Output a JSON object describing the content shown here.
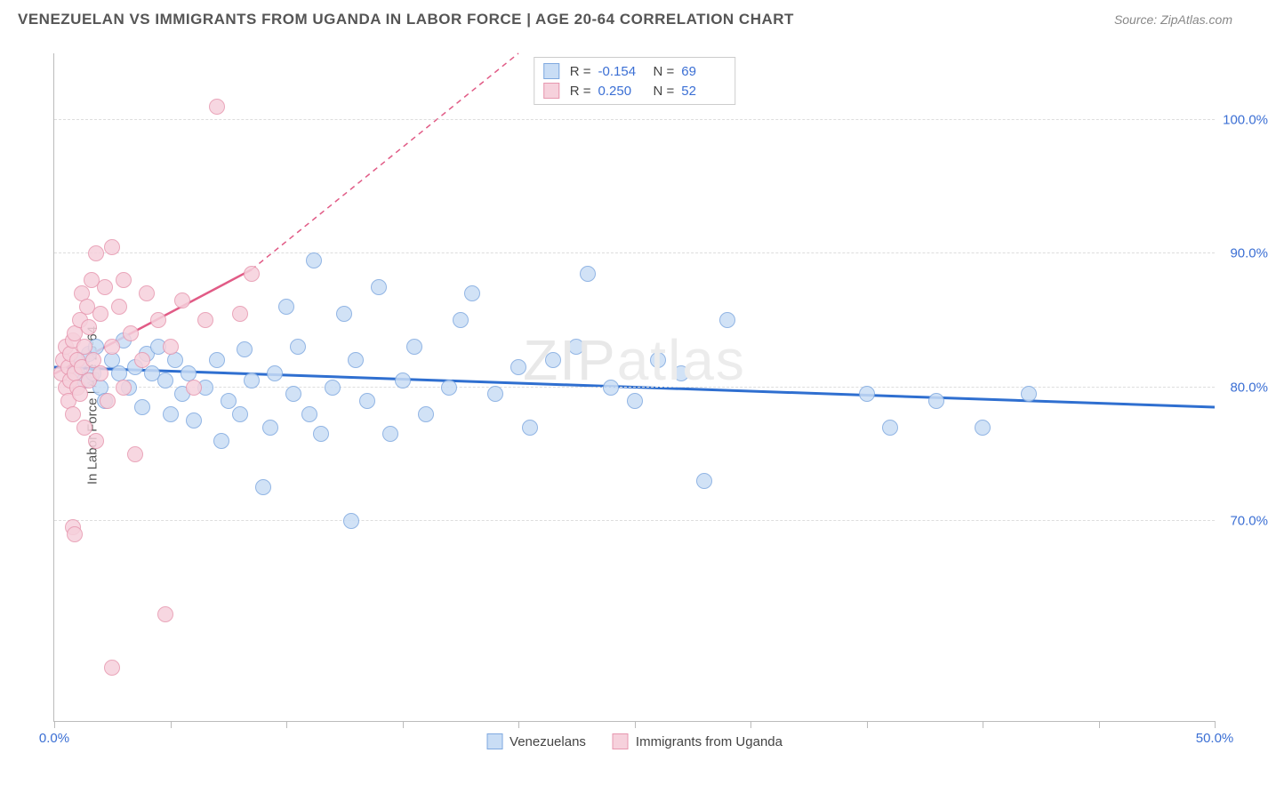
{
  "title": "VENEZUELAN VS IMMIGRANTS FROM UGANDA IN LABOR FORCE | AGE 20-64 CORRELATION CHART",
  "source": "Source: ZipAtlas.com",
  "ylabel": "In Labor Force | Age 20-64",
  "watermark": "ZIPatlas",
  "chart": {
    "type": "scatter",
    "xlim": [
      0,
      50
    ],
    "ylim": [
      55,
      105
    ],
    "xticks": [
      0,
      5,
      10,
      15,
      20,
      25,
      30,
      35,
      40,
      45,
      50
    ],
    "xlabels_shown": {
      "0": "0.0%",
      "50": "50.0%"
    },
    "ygrid": [
      70,
      80,
      90,
      100
    ],
    "ylabels": {
      "70": "70.0%",
      "80": "80.0%",
      "90": "90.0%",
      "100": "100.0%"
    },
    "background_color": "#ffffff",
    "grid_color": "#dddddd",
    "axis_color": "#bbbbbb",
    "marker_radius": 9,
    "series": [
      {
        "name": "Venezuelans",
        "fill": "#c9ddf5",
        "stroke": "#7fa9e0",
        "trend_color": "#2f6fd0",
        "trend_width": 3,
        "trend": {
          "x1": 0,
          "y1": 81.5,
          "x2": 50,
          "y2": 78.5
        },
        "R": "-0.154",
        "N": "69",
        "points": [
          [
            1.0,
            81.0
          ],
          [
            1.2,
            82.0
          ],
          [
            1.3,
            80.5
          ],
          [
            1.5,
            82.5
          ],
          [
            1.7,
            81.0
          ],
          [
            1.8,
            83.0
          ],
          [
            2.0,
            80.0
          ],
          [
            2.2,
            79.0
          ],
          [
            2.5,
            82.0
          ],
          [
            2.8,
            81.0
          ],
          [
            3.0,
            83.5
          ],
          [
            3.2,
            80.0
          ],
          [
            3.5,
            81.5
          ],
          [
            3.8,
            78.5
          ],
          [
            4.0,
            82.5
          ],
          [
            4.2,
            81.0
          ],
          [
            4.5,
            83.0
          ],
          [
            4.8,
            80.5
          ],
          [
            5.0,
            78.0
          ],
          [
            5.2,
            82.0
          ],
          [
            5.5,
            79.5
          ],
          [
            5.8,
            81.0
          ],
          [
            6.0,
            77.5
          ],
          [
            6.5,
            80.0
          ],
          [
            7.0,
            82.0
          ],
          [
            7.2,
            76.0
          ],
          [
            7.5,
            79.0
          ],
          [
            8.0,
            78.0
          ],
          [
            8.2,
            82.8
          ],
          [
            8.5,
            80.5
          ],
          [
            9.0,
            72.5
          ],
          [
            9.3,
            77.0
          ],
          [
            9.5,
            81.0
          ],
          [
            10.0,
            86.0
          ],
          [
            10.3,
            79.5
          ],
          [
            10.5,
            83.0
          ],
          [
            11.0,
            78.0
          ],
          [
            11.2,
            89.5
          ],
          [
            11.5,
            76.5
          ],
          [
            12.0,
            80.0
          ],
          [
            12.5,
            85.5
          ],
          [
            12.8,
            70.0
          ],
          [
            13.0,
            82.0
          ],
          [
            13.5,
            79.0
          ],
          [
            14.0,
            87.5
          ],
          [
            14.5,
            76.5
          ],
          [
            15.0,
            80.5
          ],
          [
            15.5,
            83.0
          ],
          [
            16.0,
            78.0
          ],
          [
            17.0,
            80.0
          ],
          [
            17.5,
            85.0
          ],
          [
            18.0,
            87.0
          ],
          [
            19.0,
            79.5
          ],
          [
            20.0,
            81.5
          ],
          [
            20.5,
            77.0
          ],
          [
            21.5,
            82.0
          ],
          [
            22.5,
            83.0
          ],
          [
            23.0,
            88.5
          ],
          [
            24.0,
            80.0
          ],
          [
            25.0,
            79.0
          ],
          [
            26.0,
            82.0
          ],
          [
            27.0,
            81.0
          ],
          [
            28.0,
            73.0
          ],
          [
            29.0,
            85.0
          ],
          [
            35.0,
            79.5
          ],
          [
            36.0,
            77.0
          ],
          [
            38.0,
            79.0
          ],
          [
            40.0,
            77.0
          ],
          [
            42.0,
            79.5
          ]
        ]
      },
      {
        "name": "Immigrants from Uganda",
        "fill": "#f6d1dc",
        "stroke": "#e797af",
        "trend_color": "#e15b86",
        "trend_width": 2.5,
        "trend": {
          "x1": 0,
          "y1": 81.0,
          "x2": 8.5,
          "y2": 88.8
        },
        "trend_dash": {
          "x1": 8.5,
          "y1": 88.8,
          "x2": 20,
          "y2": 105
        },
        "R": "0.250",
        "N": "52",
        "points": [
          [
            0.3,
            81.0
          ],
          [
            0.4,
            82.0
          ],
          [
            0.5,
            80.0
          ],
          [
            0.5,
            83.0
          ],
          [
            0.6,
            81.5
          ],
          [
            0.6,
            79.0
          ],
          [
            0.7,
            82.5
          ],
          [
            0.7,
            80.5
          ],
          [
            0.8,
            83.5
          ],
          [
            0.8,
            78.0
          ],
          [
            0.9,
            81.0
          ],
          [
            0.9,
            84.0
          ],
          [
            1.0,
            80.0
          ],
          [
            1.0,
            82.0
          ],
          [
            1.1,
            85.0
          ],
          [
            1.1,
            79.5
          ],
          [
            1.2,
            81.5
          ],
          [
            1.2,
            87.0
          ],
          [
            1.3,
            83.0
          ],
          [
            1.3,
            77.0
          ],
          [
            1.4,
            86.0
          ],
          [
            1.5,
            80.5
          ],
          [
            1.5,
            84.5
          ],
          [
            1.6,
            88.0
          ],
          [
            1.7,
            82.0
          ],
          [
            1.8,
            90.0
          ],
          [
            1.8,
            76.0
          ],
          [
            2.0,
            85.5
          ],
          [
            2.0,
            81.0
          ],
          [
            2.2,
            87.5
          ],
          [
            2.3,
            79.0
          ],
          [
            2.5,
            83.0
          ],
          [
            2.5,
            90.5
          ],
          [
            2.8,
            86.0
          ],
          [
            3.0,
            80.0
          ],
          [
            3.0,
            88.0
          ],
          [
            3.3,
            84.0
          ],
          [
            3.5,
            75.0
          ],
          [
            3.8,
            82.0
          ],
          [
            4.0,
            87.0
          ],
          [
            4.5,
            85.0
          ],
          [
            5.0,
            83.0
          ],
          [
            5.5,
            86.5
          ],
          [
            6.0,
            80.0
          ],
          [
            6.5,
            85.0
          ],
          [
            7.0,
            101.0
          ],
          [
            8.0,
            85.5
          ],
          [
            8.5,
            88.5
          ],
          [
            0.8,
            69.5
          ],
          [
            0.9,
            69.0
          ],
          [
            2.5,
            59.0
          ],
          [
            4.8,
            63.0
          ]
        ]
      }
    ]
  },
  "legend_bottom": [
    {
      "label": "Venezuelans",
      "fill": "#c9ddf5",
      "stroke": "#7fa9e0"
    },
    {
      "label": "Immigrants from Uganda",
      "fill": "#f6d1dc",
      "stroke": "#e797af"
    }
  ]
}
